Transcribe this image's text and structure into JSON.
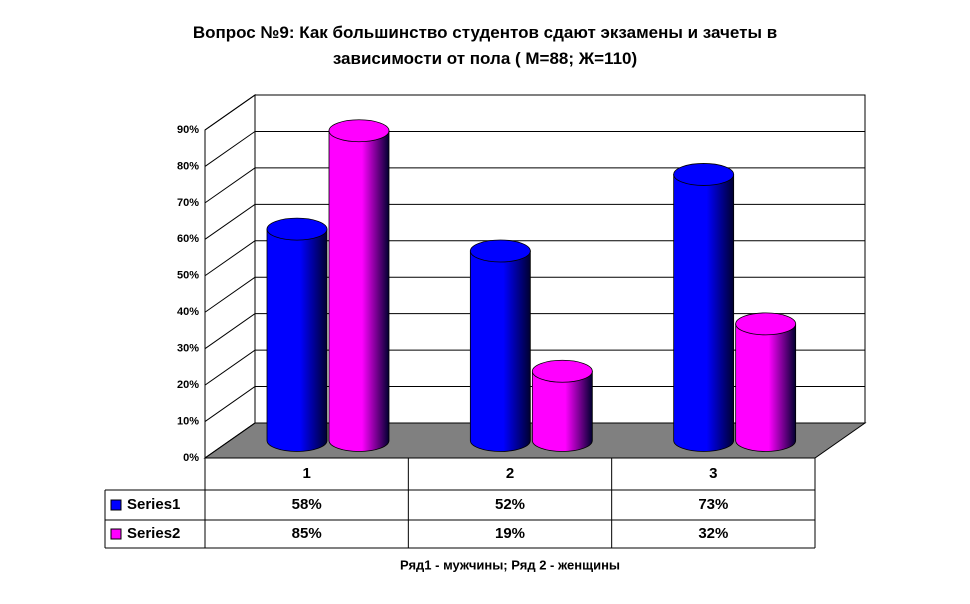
{
  "chart_data": {
    "type": "bar3d",
    "title": "Вопрос №9: Как большинство студентов сдают экзамены и зачеты в зависимости от пола ( М=88; Ж=110)",
    "footnote": "Ряд1 - мужчины; Ряд 2 - женщины",
    "categories": [
      "1",
      "2",
      "3"
    ],
    "series": [
      {
        "name": "Series1",
        "color": "#0000ff",
        "values": [
          58,
          52,
          73
        ],
        "value_labels": [
          "58%",
          "52%",
          "73%"
        ]
      },
      {
        "name": "Series2",
        "color": "#ff00ff",
        "values": [
          85,
          19,
          32
        ],
        "value_labels": [
          "85%",
          "19%",
          "32%"
        ]
      }
    ],
    "ylim": [
      0,
      90
    ],
    "yticks": [
      {
        "value": 0,
        "label": "0%"
      },
      {
        "value": 10,
        "label": "10%"
      },
      {
        "value": 20,
        "label": "20%"
      },
      {
        "value": 30,
        "label": "30%"
      },
      {
        "value": 40,
        "label": "40%"
      },
      {
        "value": 50,
        "label": "50%"
      },
      {
        "value": 60,
        "label": "60%"
      },
      {
        "value": 70,
        "label": "70%"
      },
      {
        "value": 80,
        "label": "80%"
      },
      {
        "value": 90,
        "label": "90%"
      }
    ],
    "grid": true
  }
}
